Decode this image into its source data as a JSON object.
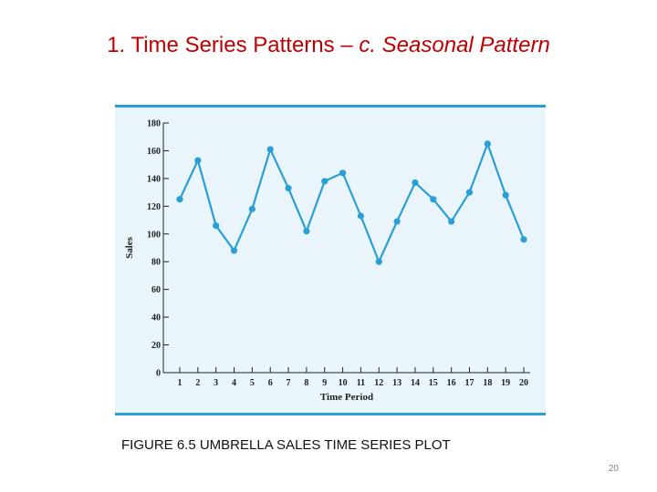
{
  "slide": {
    "title_main": "1. Time Series Patterns – ",
    "title_sub": "c. Seasonal Pattern",
    "caption": "FIGURE 6.5 UMBRELLA SALES TIME SERIES PLOT",
    "page_number": "20"
  },
  "colors": {
    "title": "#c00000",
    "series": "#2a9fd6",
    "panel_background": "#e9f4fb",
    "panel_border": "#2a9fd6",
    "axis": "#222222"
  },
  "chart_data": {
    "type": "line",
    "title": "",
    "xlabel": "Time Period",
    "ylabel": "Sales",
    "x": [
      1,
      2,
      3,
      4,
      5,
      6,
      7,
      8,
      9,
      10,
      11,
      12,
      13,
      14,
      15,
      16,
      17,
      18,
      19,
      20
    ],
    "series": [
      {
        "values": [
          125,
          153,
          106,
          88,
          118,
          161,
          133,
          102,
          138,
          144,
          113,
          80,
          109,
          137,
          125,
          109,
          130,
          165,
          128,
          96
        ]
      }
    ],
    "xlim": [
      1,
      20
    ],
    "ylim": [
      0,
      180
    ],
    "xticks": [
      "1",
      "2",
      "3",
      "4",
      "5",
      "6",
      "7",
      "8",
      "9",
      "10",
      "11",
      "12",
      "13",
      "14",
      "15",
      "16",
      "17",
      "18",
      "19",
      "20"
    ],
    "yticks": [
      "0",
      "20",
      "40",
      "60",
      "80",
      "100",
      "120",
      "140",
      "160",
      "180"
    ],
    "grid": false,
    "markers": true
  }
}
